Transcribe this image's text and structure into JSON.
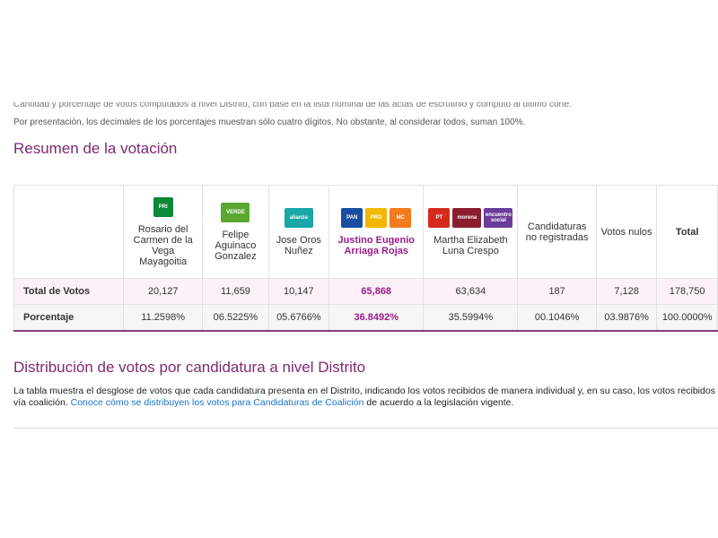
{
  "notes": {
    "cut_line": "Cantidad y porcentaje de votos computados a nivel Distrito, con base en la lista nominal de las actas de escrutinio y cómputo al último corte.",
    "decimals": "Por presentación, los decimales de los porcentajes muestran sólo cuatro dígitos. No obstante, al considerar todos, suman 100%."
  },
  "summary": {
    "title": "Resumen de la votación",
    "row_labels": {
      "total": "Total de Votos",
      "percent": "Porcentaje"
    },
    "columns": [
      {
        "type": "cand",
        "name": "Rosario del Carmen de la Vega Mayagoitia",
        "logos": [
          {
            "icon": "pri-logo-icon",
            "text": "PRI",
            "color": "#0a8a3a"
          }
        ],
        "total": "20,127",
        "percent": "11.2598%"
      },
      {
        "type": "cand",
        "name": "Felipe Aguinaco Gonzalez",
        "logos": [
          {
            "icon": "pvem-logo-icon",
            "text": "VERDE",
            "color": "#5aa832"
          }
        ],
        "total": "11,659",
        "percent": "06.5225%"
      },
      {
        "type": "cand",
        "name": "Jose Oros Nuñez",
        "logos": [
          {
            "icon": "nueva-alianza-logo-icon",
            "text": "alianza",
            "color": "#19a7a8"
          }
        ],
        "total": "10,147",
        "percent": "05.6766%"
      },
      {
        "type": "cand",
        "winner": true,
        "name": "Justino Eugenio Arriaga Rojas",
        "logos": [
          {
            "icon": "pan-logo-icon",
            "text": "PAN",
            "color": "#1a4fa0"
          },
          {
            "icon": "prd-logo-icon",
            "text": "PRD",
            "color": "#f2b705"
          },
          {
            "icon": "movimiento-ciudadano-logo-icon",
            "text": "MC",
            "color": "#f27b1e"
          }
        ],
        "total": "65,868",
        "percent": "36.8492%"
      },
      {
        "type": "cand",
        "name": "Martha Elizabeth Luna Crespo",
        "logos": [
          {
            "icon": "pt-logo-icon",
            "text": "PT",
            "color": "#d52b1e"
          },
          {
            "icon": "morena-logo-icon",
            "text": "morena",
            "color": "#8b1e2e"
          },
          {
            "icon": "encuentro-social-logo-icon",
            "text": "encuentro social",
            "color": "#6a3d9a"
          }
        ],
        "total": "63,634",
        "percent": "35.5994%"
      },
      {
        "type": "plain",
        "name": "Candidaturas no registradas",
        "total": "187",
        "percent": "00.1046%"
      },
      {
        "type": "plain",
        "name": "Votos nulos",
        "total": "7,128",
        "percent": "03.9876%"
      },
      {
        "type": "total",
        "name": "Total",
        "total": "178,750",
        "percent": "100.0000%"
      }
    ]
  },
  "distribution": {
    "title": "Distribución de votos por candidatura a nivel Distrito",
    "text_before": "La tabla muestra el desglose de votos que cada candidatura presenta en el Distrito, indicando los votos recibidos de manera individual y, en su caso, los votos recibidos vía coalición. ",
    "link": "Conoce cómo se distribuyen los votos para Candidaturas de Coalición",
    "text_after": " de acuerdo a la legislación vigente."
  }
}
